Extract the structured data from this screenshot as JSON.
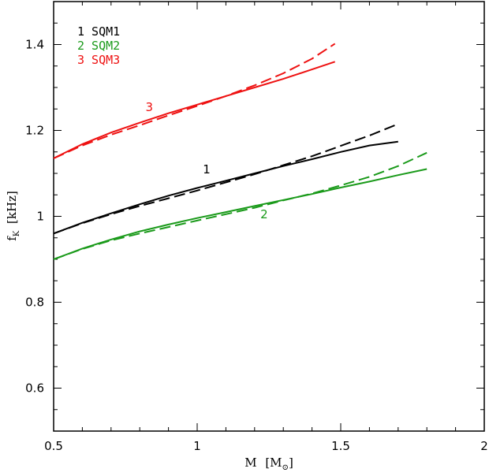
{
  "chart_data": {
    "type": "line",
    "title": "",
    "xlabel": "M",
    "xlabel_unit": "[M",
    "xlabel_unit_close": "]",
    "ylabel": "f",
    "ylabel_sub": "K",
    "ylabel_unit": "[kHz]",
    "xlim": [
      0.5,
      2.0
    ],
    "ylim": [
      0.5,
      1.5
    ],
    "xticks": [
      0.5,
      1,
      1.5,
      2
    ],
    "xtick_labels": [
      "0.5",
      "1",
      "1.5",
      "2"
    ],
    "yticks": [
      0.6,
      0.8,
      1.0,
      1.2,
      1.4
    ],
    "ytick_labels": [
      "0.6",
      "0.8",
      "1",
      "1.2",
      "1.4"
    ],
    "grid": false,
    "legend_position": "top-left",
    "legend": [
      {
        "text": "1 SQM1",
        "color": "#000000"
      },
      {
        "text": "2 SQM2",
        "color": "#1a9a1a"
      },
      {
        "text": "3 SQM3",
        "color": "#ee1111"
      }
    ],
    "curve_labels": [
      {
        "text": "1",
        "x": 1.02,
        "y": 1.1,
        "color": "#000000"
      },
      {
        "text": "2",
        "x": 1.22,
        "y": 0.995,
        "color": "#1a9a1a"
      },
      {
        "text": "3",
        "x": 0.82,
        "y": 1.245,
        "color": "#ee1111"
      }
    ],
    "series": [
      {
        "model": "SQM1",
        "style": "solid",
        "color": "#000000",
        "x": [
          0.5,
          0.6,
          0.7,
          0.8,
          0.9,
          1.0,
          1.1,
          1.2,
          1.3,
          1.4,
          1.5,
          1.6,
          1.7
        ],
        "y": [
          0.96,
          0.985,
          1.007,
          1.028,
          1.048,
          1.066,
          1.083,
          1.1,
          1.117,
          1.133,
          1.15,
          1.165,
          1.174
        ]
      },
      {
        "model": "SQM1",
        "style": "dashed",
        "color": "#000000",
        "x": [
          0.5,
          0.6,
          0.7,
          0.8,
          0.9,
          1.0,
          1.1,
          1.2,
          1.3,
          1.4,
          1.5,
          1.6,
          1.7
        ],
        "y": [
          0.96,
          0.984,
          1.005,
          1.024,
          1.042,
          1.06,
          1.079,
          1.098,
          1.119,
          1.14,
          1.164,
          1.188,
          1.215
        ]
      },
      {
        "model": "SQM2",
        "style": "solid",
        "color": "#1a9a1a",
        "x": [
          0.5,
          0.6,
          0.7,
          0.8,
          0.9,
          1.0,
          1.1,
          1.2,
          1.3,
          1.4,
          1.5,
          1.6,
          1.7,
          1.8
        ],
        "y": [
          0.9,
          0.925,
          0.946,
          0.965,
          0.981,
          0.996,
          1.01,
          1.024,
          1.038,
          1.052,
          1.067,
          1.081,
          1.096,
          1.11
        ]
      },
      {
        "model": "SQM2",
        "style": "dashed",
        "color": "#1a9a1a",
        "x": [
          0.5,
          0.6,
          0.7,
          0.8,
          0.9,
          1.0,
          1.1,
          1.2,
          1.3,
          1.4,
          1.5,
          1.6,
          1.7,
          1.8
        ],
        "y": [
          0.9,
          0.924,
          0.944,
          0.96,
          0.975,
          0.99,
          1.005,
          1.02,
          1.037,
          1.053,
          1.072,
          1.092,
          1.117,
          1.148
        ]
      },
      {
        "model": "SQM3",
        "style": "solid",
        "color": "#ee1111",
        "x": [
          0.5,
          0.6,
          0.7,
          0.8,
          0.9,
          1.0,
          1.1,
          1.2,
          1.3,
          1.4,
          1.48
        ],
        "y": [
          1.135,
          1.168,
          1.195,
          1.218,
          1.24,
          1.26,
          1.28,
          1.3,
          1.32,
          1.342,
          1.36
        ]
      },
      {
        "model": "SQM3",
        "style": "dashed",
        "color": "#ee1111",
        "x": [
          0.5,
          0.6,
          0.7,
          0.8,
          0.9,
          1.0,
          1.1,
          1.2,
          1.3,
          1.4,
          1.48
        ],
        "y": [
          1.135,
          1.165,
          1.19,
          1.212,
          1.235,
          1.257,
          1.28,
          1.305,
          1.333,
          1.367,
          1.402
        ]
      }
    ]
  }
}
